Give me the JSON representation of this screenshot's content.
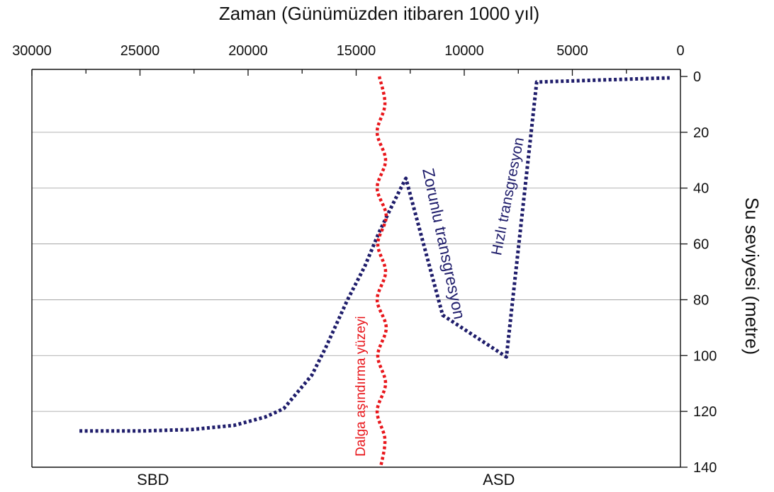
{
  "chart_data": {
    "type": "line",
    "xaxis": {
      "position": "top",
      "label": "Zaman (Günümüzden itibaren 1000 yıl)",
      "range": [
        30000,
        0
      ],
      "ticks": [
        30000,
        25000,
        20000,
        15000,
        10000,
        5000,
        0
      ],
      "tick_labels": [
        "30000",
        "25000",
        "20000",
        "15000",
        "10000",
        "5000",
        "0"
      ],
      "minor_ticks": [
        27500,
        22500,
        17500,
        12500,
        7500,
        2500
      ]
    },
    "yaxis": {
      "position": "right",
      "label": "Su seviyesi (metre)",
      "range": [
        0,
        140
      ],
      "ticks": [
        0,
        20,
        40,
        60,
        80,
        100,
        120,
        140
      ],
      "tick_labels": [
        "0",
        "20",
        "40",
        "60",
        "80",
        "100",
        "120",
        "140"
      ]
    },
    "grid": true,
    "gridlines_y": [
      20,
      40,
      60,
      80,
      100,
      120
    ],
    "series": [
      {
        "color": "#1f1d6b",
        "style": "dotted",
        "x": [
          27800,
          24900,
          22600,
          20650,
          19200,
          18350,
          17050,
          16400,
          15400,
          14600,
          13950,
          13450,
          13000,
          12700,
          11000,
          8050,
          6650,
          500
        ],
        "y": [
          127,
          127,
          126.5,
          125,
          122,
          119,
          107,
          97,
          80,
          68,
          56,
          48,
          41,
          36.5,
          85.5,
          100.5,
          2,
          0.5
        ]
      },
      {
        "color": "#e8161b",
        "style": "dotted",
        "x": [
          13930,
          13670,
          14030,
          13640,
          14030,
          13610,
          14000,
          13640,
          14030,
          13610,
          14000,
          13640,
          14030,
          13670,
          13870
        ],
        "y": [
          0,
          10,
          20,
          30,
          40,
          50,
          60,
          70,
          80,
          90,
          100,
          110,
          120,
          130,
          140
        ]
      }
    ],
    "annotations": [
      {
        "text": "Dalga aşındırma yüzeyi",
        "color": "#e8161b",
        "x": 14750,
        "y": 111
      },
      {
        "text": "Zorunlu transgresyon",
        "color": "#1f1d6b",
        "x": 11000,
        "y": 60
      },
      {
        "text": "Hızlı transgresyon",
        "color": "#1f1d6b",
        "x": 7950,
        "y": 43
      }
    ],
    "bottom_labels": [
      {
        "text": "SBD",
        "x": 24400
      },
      {
        "text": "ASD",
        "x": 8400
      }
    ]
  }
}
